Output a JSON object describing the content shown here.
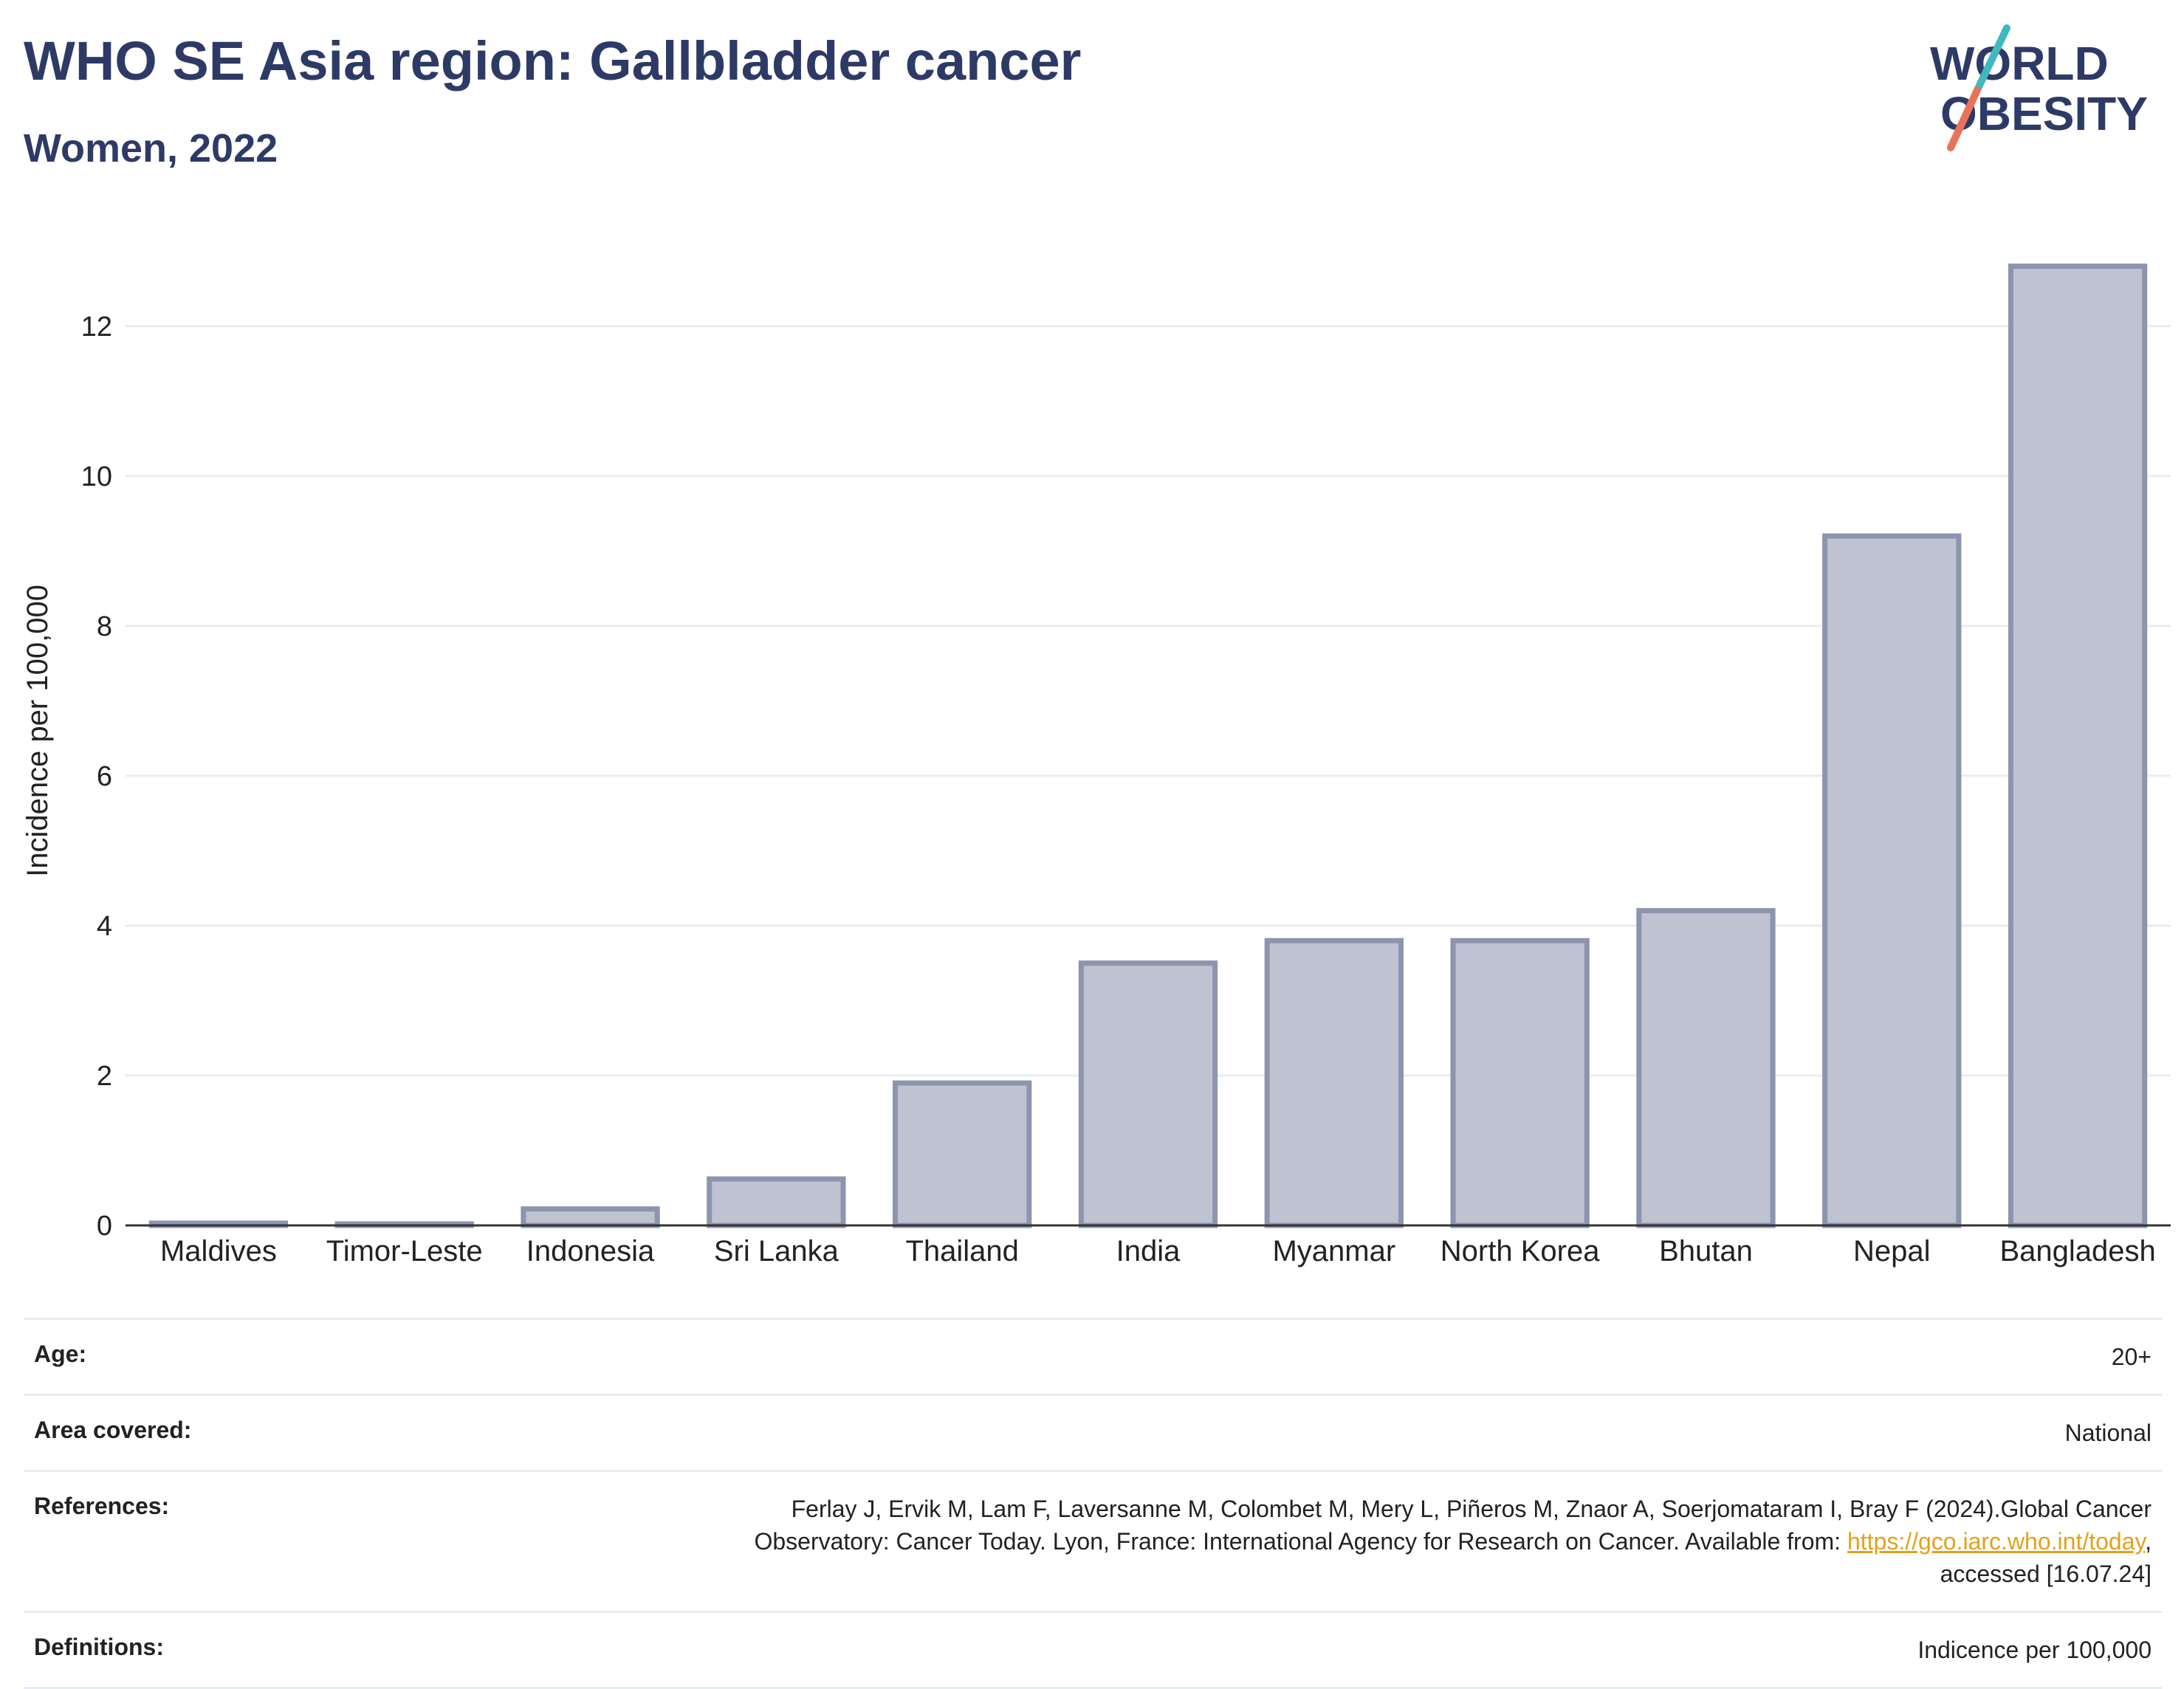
{
  "header": {
    "title": "WHO SE Asia region: Gallbladder cancer",
    "subtitle": "Women, 2022"
  },
  "logo": {
    "line1": "WORLD",
    "line2": "OBESITY",
    "colors": {
      "text": "#2e3a66",
      "slash_top": "#3fb8c0",
      "slash_bottom": "#e8735a"
    }
  },
  "chart_data": {
    "type": "bar",
    "categories": [
      "Maldives",
      "Timor-Leste",
      "Indonesia",
      "Sri Lanka",
      "Thailand",
      "India",
      "Myanmar",
      "North Korea",
      "Bhutan",
      "Nepal",
      "Bangladesh"
    ],
    "values": [
      0.03,
      0.02,
      0.22,
      0.62,
      1.9,
      3.5,
      3.8,
      3.8,
      4.2,
      9.2,
      12.8
    ],
    "ylabel": "Incidence per 100,000",
    "xlabel": "",
    "ylim": [
      0,
      13.2
    ],
    "yticks": [
      0,
      2,
      4,
      6,
      8,
      10,
      12
    ],
    "grid": true,
    "colors": {
      "bar_fill": "#bec2d1",
      "bar_stroke": "#8d94ad"
    }
  },
  "info": {
    "age": {
      "label": "Age:",
      "value": "20+"
    },
    "area": {
      "label": "Area covered:",
      "value": "National"
    },
    "references": {
      "label": "References:",
      "line1": "Ferlay J, Ervik M, Lam F, Laversanne M, Colombet M, Mery L, Piñeros M, Znaor A, Soerjomataram I, Bray F (2024).Global Cancer",
      "line2_prefix": "Observatory: Cancer Today. Lyon, France: International Agency for Research on Cancer. Available from: ",
      "link": "https://gco.iarc.who.int/today",
      "line2_suffix": ",",
      "line3": "accessed [16.07.24]"
    },
    "definitions": {
      "label": "Definitions:",
      "value": "Indicence per 100,000"
    }
  }
}
